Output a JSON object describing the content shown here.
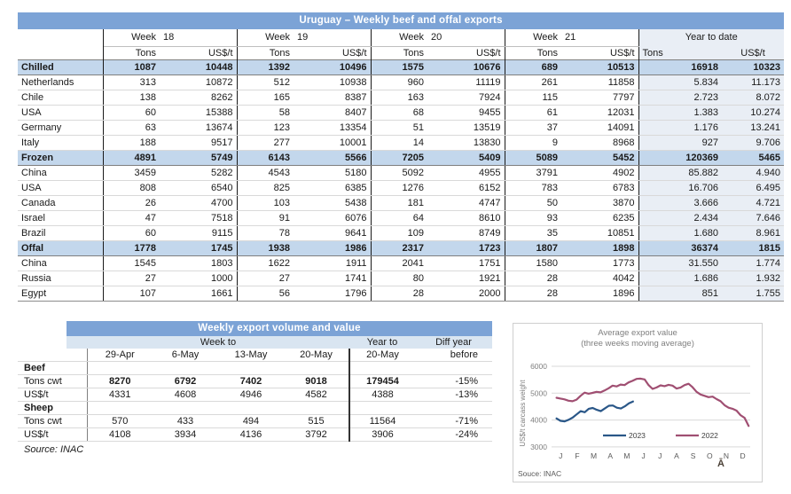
{
  "main_table": {
    "title": "Uruguay – Weekly beef and offal exports",
    "week_label": "Week",
    "weeks": [
      "18",
      "19",
      "20",
      "21"
    ],
    "ytd_label": "Year to date",
    "tons_label": "Tons",
    "usdt_label": "US$/t",
    "rows": [
      {
        "label": "Chilled",
        "type": "section",
        "values": [
          "1087",
          "10448",
          "1392",
          "10496",
          "1575",
          "10676",
          "689",
          "10513",
          "16918",
          "10323"
        ]
      },
      {
        "label": "Netherlands",
        "type": "data",
        "values": [
          "313",
          "10872",
          "512",
          "10938",
          "960",
          "11119",
          "261",
          "11858",
          "5.834",
          "11.173"
        ]
      },
      {
        "label": "Chile",
        "type": "data",
        "values": [
          "138",
          "8262",
          "165",
          "8387",
          "163",
          "7924",
          "115",
          "7797",
          "2.723",
          "8.072"
        ]
      },
      {
        "label": "USA",
        "type": "data",
        "values": [
          "60",
          "15388",
          "58",
          "8407",
          "68",
          "9455",
          "61",
          "12031",
          "1.383",
          "10.274"
        ]
      },
      {
        "label": "Germany",
        "type": "data",
        "values": [
          "63",
          "13674",
          "123",
          "13354",
          "51",
          "13519",
          "37",
          "14091",
          "1.176",
          "13.241"
        ]
      },
      {
        "label": "Italy",
        "type": "data",
        "values": [
          "188",
          "9517",
          "277",
          "10001",
          "14",
          "13830",
          "9",
          "8968",
          "927",
          "9.706"
        ]
      },
      {
        "label": "Frozen",
        "type": "section",
        "values": [
          "4891",
          "5749",
          "6143",
          "5566",
          "7205",
          "5409",
          "5089",
          "5452",
          "120369",
          "5465"
        ]
      },
      {
        "label": "China",
        "type": "data",
        "values": [
          "3459",
          "5282",
          "4543",
          "5180",
          "5092",
          "4955",
          "3791",
          "4902",
          "85.882",
          "4.940"
        ]
      },
      {
        "label": "USA",
        "type": "data",
        "values": [
          "808",
          "6540",
          "825",
          "6385",
          "1276",
          "6152",
          "783",
          "6783",
          "16.706",
          "6.495"
        ]
      },
      {
        "label": "Canada",
        "type": "data",
        "values": [
          "26",
          "4700",
          "103",
          "5438",
          "181",
          "4747",
          "50",
          "3870",
          "3.666",
          "4.721"
        ]
      },
      {
        "label": "Israel",
        "type": "data",
        "values": [
          "47",
          "7518",
          "91",
          "6076",
          "64",
          "8610",
          "93",
          "6235",
          "2.434",
          "7.646"
        ]
      },
      {
        "label": "Brazil",
        "type": "data",
        "values": [
          "60",
          "9115",
          "78",
          "9641",
          "109",
          "8749",
          "35",
          "10851",
          "1.680",
          "8.961"
        ]
      },
      {
        "label": "Offal",
        "type": "section",
        "values": [
          "1778",
          "1745",
          "1938",
          "1986",
          "2317",
          "1723",
          "1807",
          "1898",
          "36374",
          "1815"
        ]
      },
      {
        "label": "China",
        "type": "data",
        "values": [
          "1545",
          "1803",
          "1622",
          "1911",
          "2041",
          "1751",
          "1580",
          "1773",
          "31.550",
          "1.774"
        ]
      },
      {
        "label": "Russia",
        "type": "data",
        "values": [
          "27",
          "1000",
          "27",
          "1741",
          "80",
          "1921",
          "28",
          "4042",
          "1.686",
          "1.932"
        ]
      },
      {
        "label": "Egypt",
        "type": "data",
        "values": [
          "107",
          "1661",
          "56",
          "1796",
          "28",
          "2000",
          "28",
          "1896",
          "851",
          "1.755"
        ]
      }
    ]
  },
  "weekly_table": {
    "title": "Weekly export volume and value",
    "week_to_label": "Week to",
    "year_to_label": "Year to",
    "diff_label_line1": "Diff year",
    "diff_label_line2": "before",
    "dates": [
      "29-Apr",
      "6-May",
      "13-May",
      "20-May"
    ],
    "year_to_date": "20-May",
    "rows": [
      {
        "label": "Beef",
        "type": "section",
        "values": [
          "",
          "",
          "",
          ""
        ],
        "year": "",
        "diff": ""
      },
      {
        "label": "Tons cwt",
        "type": "data",
        "bold": true,
        "values": [
          "8270",
          "6792",
          "7402",
          "9018"
        ],
        "year": "179454",
        "diff": "-15%"
      },
      {
        "label": "US$/t",
        "type": "data",
        "bold": false,
        "values": [
          "4331",
          "4608",
          "4946",
          "4582"
        ],
        "year": "4388",
        "diff": "-13%"
      },
      {
        "label": "Sheep",
        "type": "section",
        "values": [
          "",
          "",
          "",
          ""
        ],
        "year": "",
        "diff": ""
      },
      {
        "label": "Tons cwt",
        "type": "data",
        "bold": false,
        "values": [
          "570",
          "433",
          "494",
          "515"
        ],
        "year": "11564",
        "diff": "-71%"
      },
      {
        "label": "US$/t",
        "type": "data",
        "bold": false,
        "values": [
          "4108",
          "3934",
          "4136",
          "3792"
        ],
        "year": "3906",
        "diff": "-24%"
      }
    ],
    "source": "Source: INAC"
  },
  "chart_data": {
    "type": "line",
    "title": "Average export  value",
    "subtitle": "(three weeks moving average)",
    "ylabel": "US$/t carcass weight",
    "ylim": [
      3000,
      6000
    ],
    "yticks": [
      6000,
      5000,
      4000,
      3000
    ],
    "x_tick_labels": [
      "J",
      "F",
      "M",
      "A",
      "M",
      "J",
      "J",
      "A",
      "S",
      "O",
      "N",
      "D"
    ],
    "grid": true,
    "legend_position": "bottom-inside",
    "source": "Souce: INAC",
    "series": [
      {
        "name": "2023",
        "color": "#2a5788",
        "x_start": 0.3,
        "x_step": 0.243,
        "values": [
          4060,
          3970,
          3950,
          4010,
          4090,
          4210,
          4330,
          4290,
          4420,
          4450,
          4380,
          4330,
          4430,
          4530,
          4540,
          4460,
          4430,
          4510,
          4620,
          4690
        ]
      },
      {
        "name": "2022",
        "color": "#a04f72",
        "x_start": 0.3,
        "x_step": 0.2417,
        "values": [
          4830,
          4800,
          4770,
          4720,
          4700,
          4760,
          4900,
          5020,
          4980,
          5010,
          5050,
          5030,
          5100,
          5180,
          5280,
          5250,
          5320,
          5300,
          5400,
          5460,
          5530,
          5540,
          5510,
          5300,
          5160,
          5210,
          5290,
          5260,
          5310,
          5280,
          5170,
          5210,
          5300,
          5350,
          5220,
          5050,
          4950,
          4900,
          4850,
          4870,
          4780,
          4700,
          4550,
          4460,
          4420,
          4350,
          4180,
          4080,
          3780
        ]
      }
    ]
  },
  "misc": {
    "corner_glyph": "Ā"
  }
}
